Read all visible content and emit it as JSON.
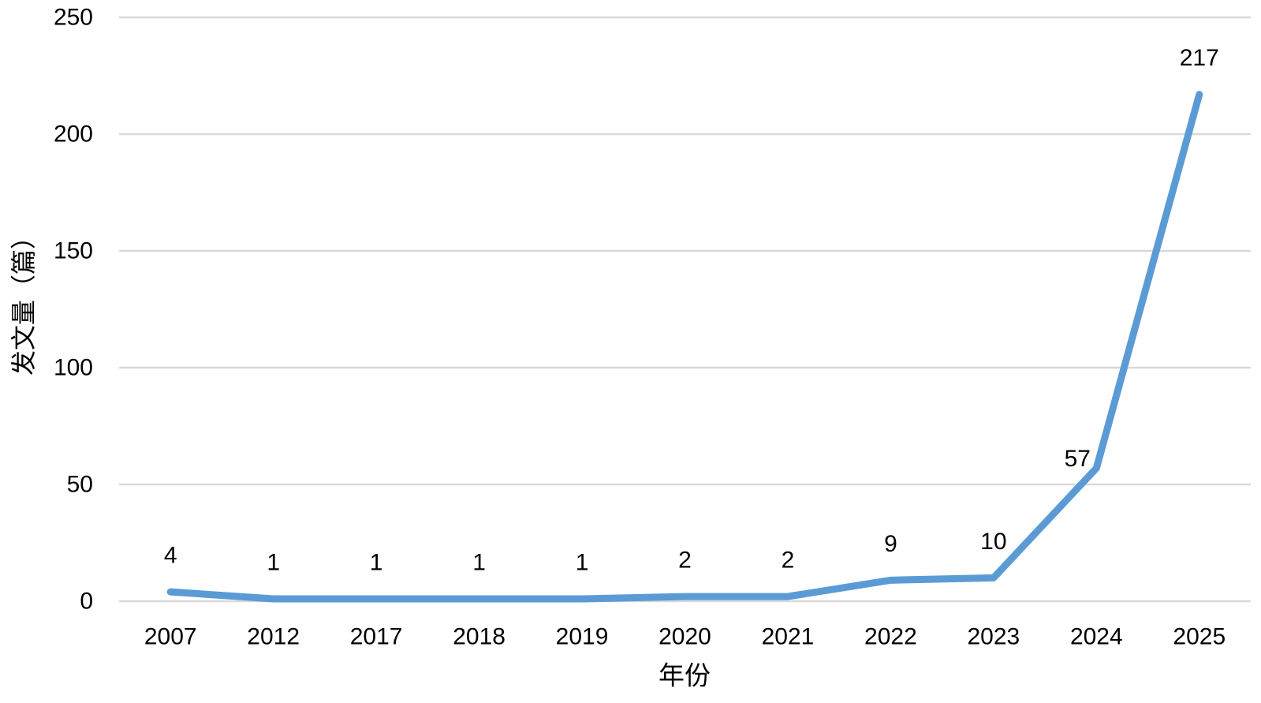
{
  "chart_data": {
    "type": "line",
    "title": "",
    "categories": [
      "2007",
      "2012",
      "2017",
      "2018",
      "2019",
      "2020",
      "2021",
      "2022",
      "2023",
      "2024",
      "2025"
    ],
    "values": [
      4,
      1,
      1,
      1,
      1,
      2,
      2,
      9,
      10,
      57,
      217
    ],
    "data_labels": [
      "4",
      "1",
      "1",
      "1",
      "1",
      "2",
      "2",
      "9",
      "10",
      "57",
      "217"
    ],
    "xlabel": "年份",
    "ylabel": "发文量（篇）",
    "ylim": [
      0,
      250
    ],
    "yticks": [
      0,
      50,
      100,
      150,
      200,
      250
    ],
    "grid": true,
    "legend": false,
    "colors": {
      "line": "#5B9BD5",
      "gridline": "#D9D9D9",
      "text": "#000000",
      "background": "#FFFFFF"
    }
  }
}
